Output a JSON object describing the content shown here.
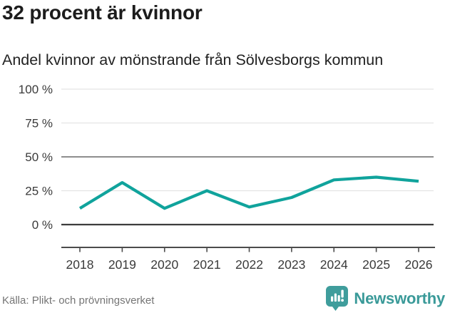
{
  "header": {
    "title": "32 procent är kvinnor",
    "subtitle": "Andel kvinnor av mönstrande från Sölvesborgs kommun"
  },
  "chart_data": {
    "type": "line",
    "title": "32 procent är kvinnor",
    "subtitle": "Andel kvinnor av mönstrande från Sölvesborgs kommun",
    "categories": [
      "2018",
      "2019",
      "2020",
      "2021",
      "2022",
      "2023",
      "2024",
      "2025",
      "2026"
    ],
    "series": [
      {
        "name": "Andel kvinnor av mönstrande",
        "values": [
          12,
          31,
          12,
          25,
          13,
          20,
          33,
          35,
          32
        ]
      }
    ],
    "xlabel": "",
    "ylabel": "",
    "ylim": [
      0,
      100
    ],
    "yticks": [
      0,
      25,
      50,
      75,
      100
    ],
    "ytick_suffix": " %",
    "grid": true,
    "reference_gridline": 50,
    "legend": "none",
    "line_color": "#10a39c"
  },
  "colors": {
    "accent": "#10a39c",
    "logo_teal": "#3f9d9c",
    "grid_light": "#e4e4e4",
    "grid_reference": "#7d7d7d",
    "zero_line": "#3c3c3c",
    "axis": "#4c4c4c",
    "tick_label": "#3a3a3a",
    "text": "#1c1c1c",
    "muted": "#757575"
  },
  "footer": {
    "source": "Källa: Plikt- och prövningsverket",
    "logo_text": "Newsworthy"
  },
  "icons": {
    "logo_icon": "bar-chart-speech-bubble-icon"
  }
}
